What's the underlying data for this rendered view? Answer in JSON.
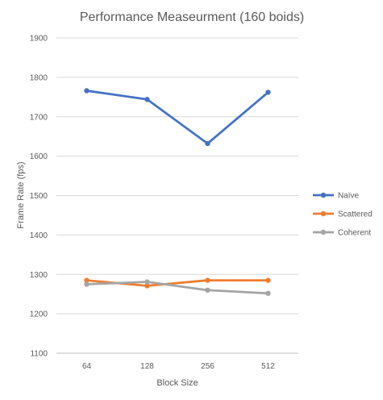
{
  "chart_data": {
    "type": "line",
    "title": "Performance Measeurment (160 boids)",
    "xlabel": "Block Size",
    "ylabel": "Frame Rate (fps)",
    "categories": [
      "64",
      "128",
      "256",
      "512"
    ],
    "ylim": [
      1100,
      1900
    ],
    "yticks": [
      1100,
      1200,
      1300,
      1400,
      1500,
      1600,
      1700,
      1800,
      1900
    ],
    "ytick_labels": [
      "1100",
      "1200",
      "1300",
      "1400",
      "1500",
      "1600",
      "1700",
      "1800",
      "1900"
    ],
    "grid": true,
    "legend": "right",
    "series": [
      {
        "name": "Naïve",
        "color": "#4472C4",
        "values": [
          1766,
          1744,
          1632,
          1762
        ]
      },
      {
        "name": "Scattered",
        "color": "#ED7D31",
        "values": [
          1285,
          1271,
          1285,
          1285
        ]
      },
      {
        "name": "Coherent",
        "color": "#A5A5A5",
        "values": [
          1275,
          1281,
          1260,
          1252
        ]
      }
    ]
  }
}
